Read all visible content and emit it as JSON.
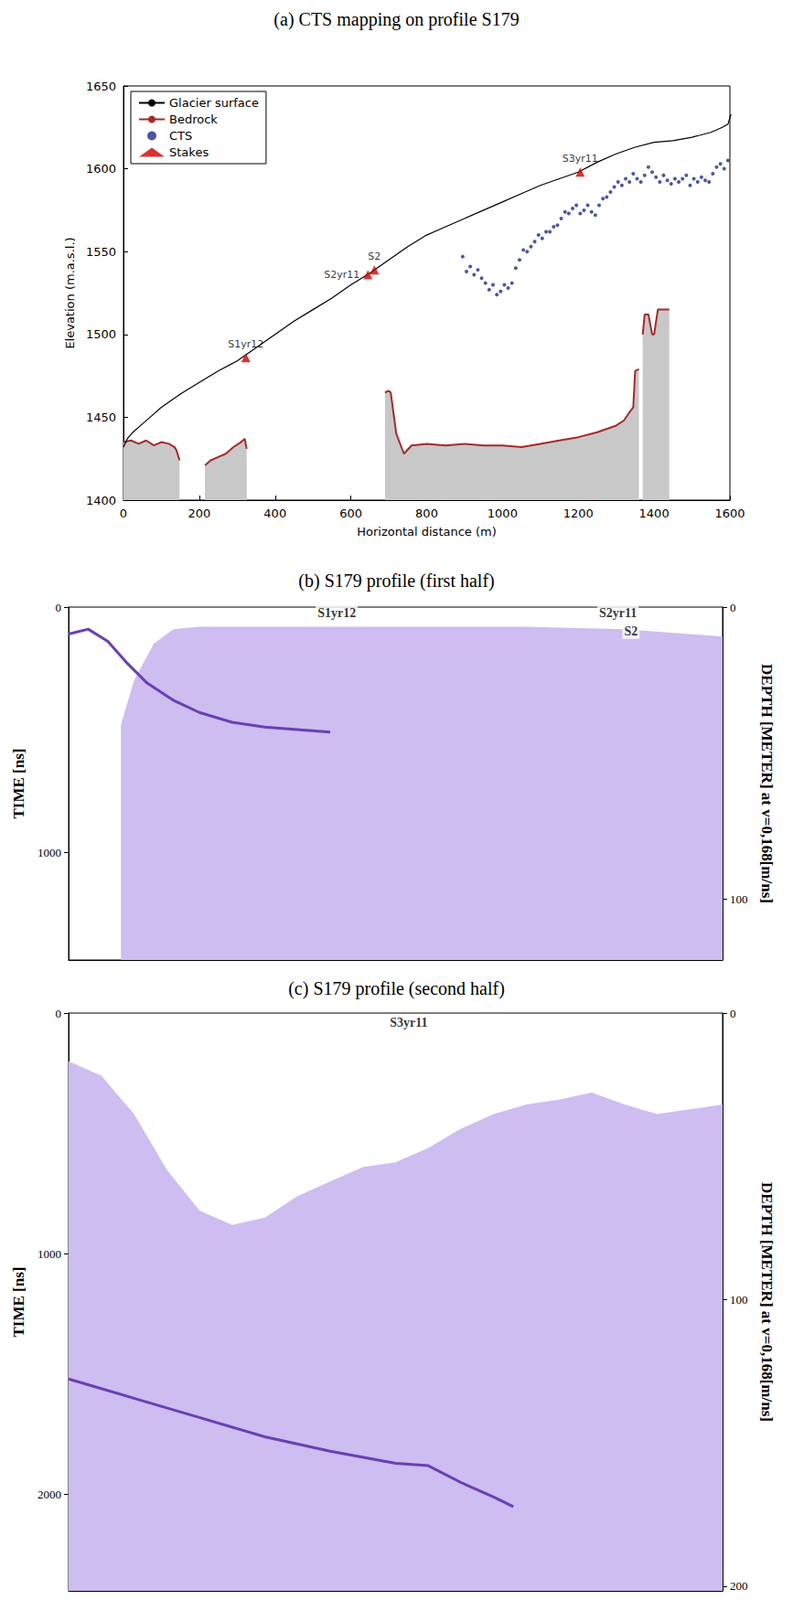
{
  "chart_data": [
    {
      "type": "line",
      "title": "(a) CTS mapping on profile S179",
      "x_label": "Horizontal distance (m)",
      "y_label": "Elevation (m.a.s.l.)",
      "xlim": [
        0,
        1600
      ],
      "xticks": [
        0,
        200,
        400,
        600,
        800,
        1000,
        1200,
        1400,
        1600
      ],
      "ylim": [
        1400,
        1650
      ],
      "yticks": [
        1400,
        1450,
        1500,
        1550,
        1600,
        1650
      ],
      "grid": false,
      "legend": "upper left",
      "series": [
        {
          "name": "Glacier surface",
          "type": "line",
          "color": "#000000",
          "x": [
            0,
            10,
            25,
            50,
            75,
            100,
            150,
            200,
            250,
            300,
            350,
            400,
            450,
            500,
            550,
            600,
            650,
            700,
            750,
            800,
            850,
            900,
            950,
            1000,
            1050,
            1100,
            1150,
            1200,
            1250,
            1300,
            1350,
            1400,
            1450,
            1500,
            1550,
            1580,
            1595,
            1603
          ],
          "values": [
            1432,
            1437,
            1441,
            1446,
            1451,
            1456,
            1464,
            1471,
            1478,
            1484,
            1492,
            1500,
            1508,
            1515,
            1522,
            1530,
            1537,
            1545,
            1553,
            1560,
            1565,
            1570,
            1575,
            1580,
            1585,
            1590,
            1594,
            1598,
            1604,
            1609,
            1613,
            1616,
            1617,
            1619,
            1622,
            1625,
            1627,
            1633
          ]
        },
        {
          "name": "Bedrock",
          "type": "area",
          "color": "#a52a2a",
          "x": [
            0,
            20,
            40,
            60,
            80,
            100,
            120,
            135,
            140,
            148,
            180,
            215,
            230,
            250,
            270,
            290,
            310,
            320,
            325,
            500,
            690,
            700,
            705,
            720,
            740,
            760,
            800,
            850,
            900,
            950,
            1000,
            1050,
            1100,
            1150,
            1200,
            1250,
            1300,
            1320,
            1335,
            1345,
            1350,
            1360,
            1365,
            1370,
            1375,
            1385,
            1395,
            1400,
            1410,
            1420,
            1440
          ],
          "values": [
            1435,
            1436,
            1434,
            1436,
            1433,
            1435,
            1434,
            1432,
            1430,
            1424,
            null,
            1421,
            1424,
            1426,
            1428,
            1432,
            1435,
            1437,
            1431,
            null,
            1465,
            1466,
            1465,
            1440,
            1428,
            1433,
            1434,
            1433,
            1434,
            1433,
            1433,
            1432,
            1434,
            1436,
            1438,
            1441,
            1445,
            1448,
            1453,
            1456,
            1478,
            1479,
            null,
            1500,
            1512,
            1512,
            1500,
            1500,
            1515,
            1515,
            1515
          ]
        },
        {
          "name": "CTS",
          "type": "scatter",
          "marker": "circle",
          "color": "#1f2a8c",
          "x": [
            895,
            905,
            915,
            925,
            935,
            945,
            955,
            965,
            975,
            985,
            995,
            1005,
            1015,
            1025,
            1035,
            1045,
            1055,
            1065,
            1075,
            1085,
            1095,
            1105,
            1115,
            1125,
            1135,
            1145,
            1155,
            1165,
            1175,
            1185,
            1195,
            1205,
            1215,
            1225,
            1235,
            1245,
            1255,
            1265,
            1275,
            1285,
            1295,
            1305,
            1315,
            1325,
            1335,
            1345,
            1355,
            1365,
            1375,
            1385,
            1395,
            1405,
            1415,
            1425,
            1435,
            1445,
            1455,
            1465,
            1475,
            1485,
            1495,
            1505,
            1515,
            1525,
            1535,
            1545,
            1555,
            1565,
            1575,
            1585,
            1595
          ],
          "values": [
            1547,
            1538,
            1541,
            1536,
            1539,
            1534,
            1531,
            1527,
            1530,
            1524,
            1526,
            1530,
            1528,
            1531,
            1540,
            1545,
            1551,
            1550,
            1553,
            1556,
            1560,
            1558,
            1562,
            1562,
            1565,
            1566,
            1570,
            1574,
            1573,
            1576,
            1578,
            1573,
            1575,
            1578,
            1574,
            1572,
            1578,
            1582,
            1583,
            1586,
            1589,
            1592,
            1590,
            1594,
            1592,
            1597,
            1594,
            1592,
            1596,
            1601,
            1598,
            1595,
            1592,
            1596,
            1593,
            1591,
            1594,
            1592,
            1594,
            1596,
            1590,
            1594,
            1592,
            1595,
            1593,
            1592,
            1597,
            1601,
            1603,
            1600,
            1605
          ]
        },
        {
          "name": "Stakes",
          "type": "scatter",
          "marker": "triangle",
          "color": "#cc0000",
          "x": [
            323,
            645,
            662,
            1205
          ],
          "values": [
            1486,
            1536,
            1539,
            1598
          ],
          "labels": [
            "S1yr12",
            "S2yr11",
            "S2",
            "S3yr11"
          ]
        }
      ]
    },
    {
      "type": "line",
      "title": "(b) S179 profile (first half)",
      "y_label": "TIME [ns]",
      "y2_label": "DEPTH [METER] at v=0,168[m/ns]",
      "xlim": [
        0,
        1
      ],
      "ylim": [
        1440,
        0
      ],
      "yticks": [
        0,
        1000
      ],
      "y2lim": [
        120.96,
        0
      ],
      "y2ticks": [
        0,
        100
      ],
      "tick_labels": "y",
      "grid": false,
      "series": [
        {
          "type": "area",
          "color": "#cdbdf0",
          "x": [
            0.08,
            0.1,
            0.13,
            0.16,
            0.2,
            0.3,
            0.5,
            0.7,
            0.85,
            0.95,
            1
          ],
          "values": [
            480,
            300,
            150,
            90,
            80,
            80,
            80,
            80,
            90,
            110,
            120
          ]
        },
        {
          "type": "line",
          "color": "#6a3fb5",
          "x": [
            0,
            0.03,
            0.06,
            0.09,
            0.12,
            0.16,
            0.2,
            0.25,
            0.3,
            0.35,
            0.4
          ],
          "values": [
            110,
            90,
            140,
            230,
            310,
            380,
            430,
            470,
            490,
            500,
            510
          ]
        }
      ],
      "annotations": [
        {
          "text": "S1yr12",
          "x": 0.41,
          "y": 25
        },
        {
          "text": "S2yr11",
          "x": 0.84,
          "y": 25
        },
        {
          "text": "S2",
          "x": 0.86,
          "y": 100
        }
      ]
    },
    {
      "type": "line",
      "title": "(c) S179 profile (second half)",
      "y_label": "TIME [ns]",
      "y2_label": "DEPTH [METER] at v=0,168[m/ns]",
      "xlim": [
        0,
        1
      ],
      "ylim": [
        2400,
        0
      ],
      "yticks": [
        0,
        1000,
        2000
      ],
      "y2lim": [
        201.6,
        0
      ],
      "y2ticks": [
        0,
        100,
        200
      ],
      "tick_labels": "y",
      "grid": false,
      "series": [
        {
          "type": "area",
          "color": "#cdbdf0",
          "x": [
            0,
            0.05,
            0.1,
            0.15,
            0.2,
            0.25,
            0.3,
            0.35,
            0.4,
            0.45,
            0.5,
            0.55,
            0.6,
            0.65,
            0.7,
            0.75,
            0.8,
            0.85,
            0.9,
            0.95,
            1
          ],
          "values": [
            200,
            260,
            420,
            650,
            820,
            880,
            850,
            760,
            700,
            640,
            620,
            560,
            480,
            420,
            380,
            360,
            330,
            380,
            420,
            400,
            380
          ]
        },
        {
          "type": "line",
          "color": "#6a3fb5",
          "x": [
            0,
            0.1,
            0.2,
            0.3,
            0.4,
            0.5,
            0.55,
            0.6,
            0.65,
            0.68
          ],
          "values": [
            1520,
            1600,
            1680,
            1760,
            1820,
            1870,
            1880,
            1950,
            2010,
            2050
          ]
        }
      ],
      "annotations": [
        {
          "text": "S3yr11",
          "x": 0.52,
          "y": 40
        }
      ]
    }
  ]
}
